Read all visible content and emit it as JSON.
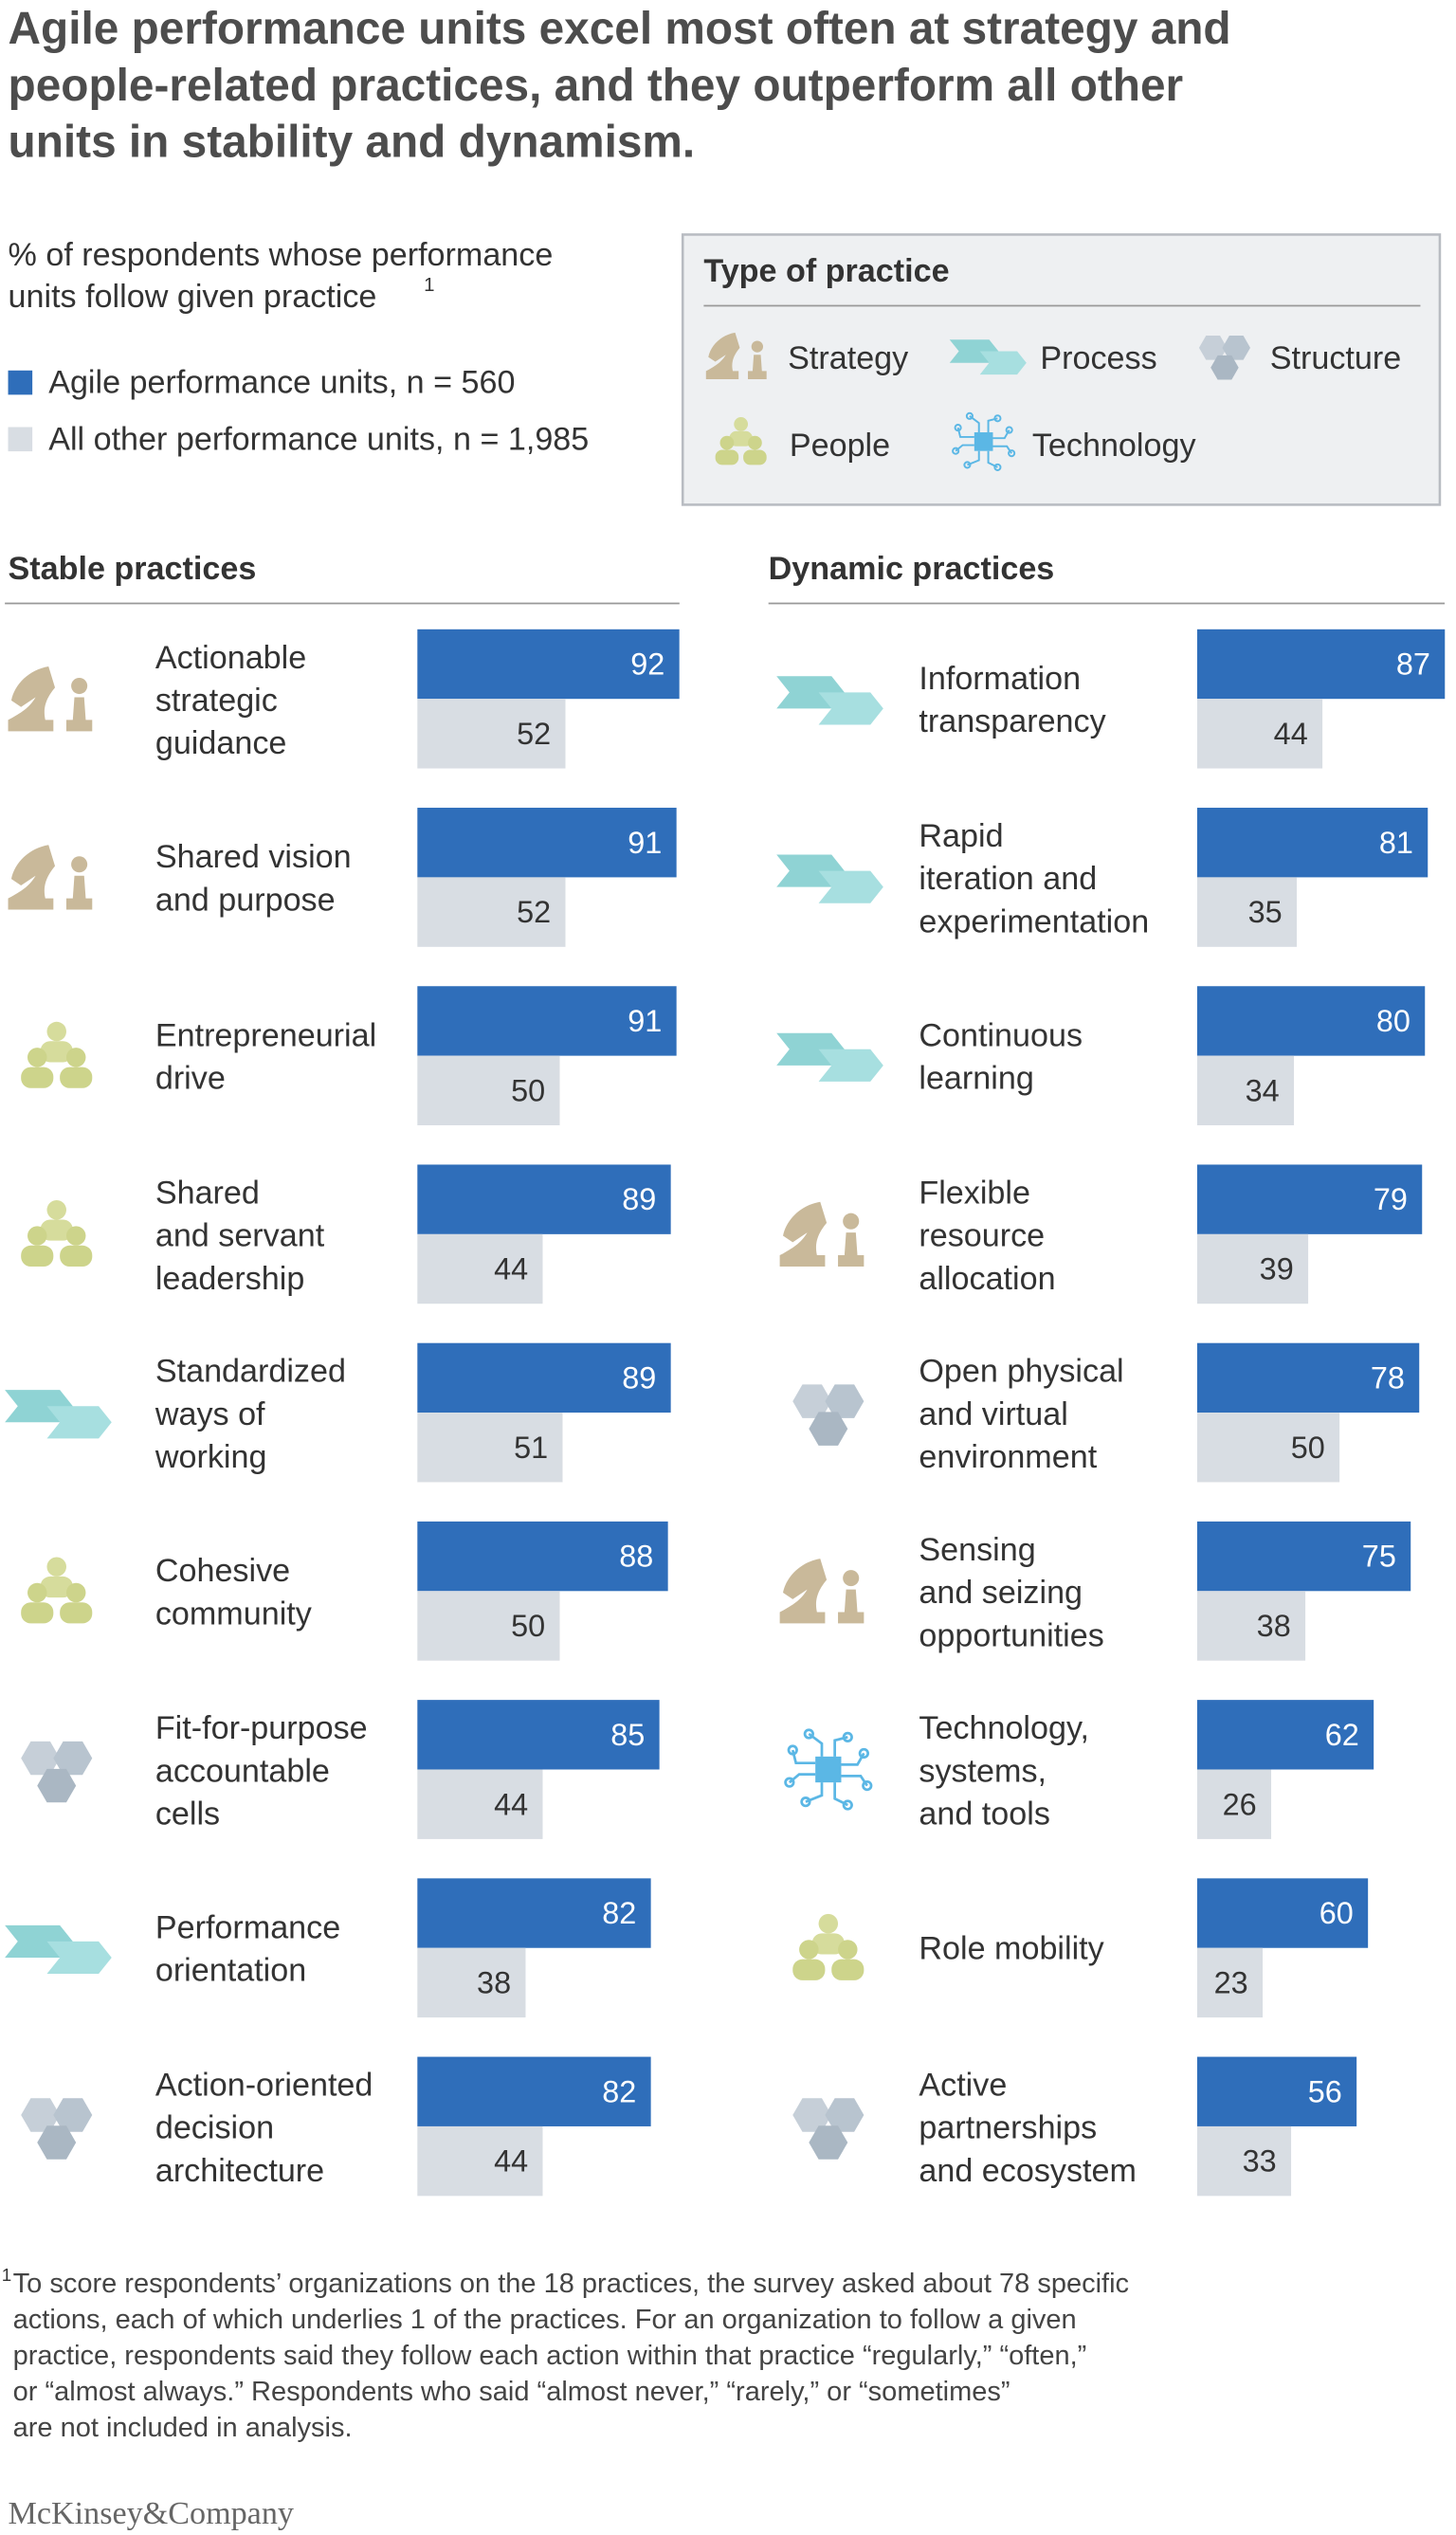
{
  "header": {
    "title": "Agile performance units excel most often at strategy and\npeople-related practices, and they outperform all other\nunits in stability and dynamism.",
    "subtitle": "% of respondents whose performance\nunits follow given practice",
    "subtitle_note": "1"
  },
  "legend": {
    "items": [
      {
        "name": "Agile performance units, n = 560",
        "color": "#2f6eba"
      },
      {
        "name": "All other performance units, n = 1,985",
        "color": "#d8dde3"
      }
    ]
  },
  "practice_types": {
    "title": "Type of practice",
    "items": [
      "Strategy",
      "Process",
      "Structure",
      "People",
      "Technology"
    ]
  },
  "chart_data": [
    {
      "type": "bar",
      "title": "Stable practices",
      "categories": [
        "Actionable\nstrategic\nguidance",
        "Shared vision\nand purpose",
        "Entrepreneurial\ndrive",
        "Shared\nand servant\nleadership",
        "Standardized\nways of\nworking",
        "Cohesive\ncommunity",
        "Fit-for-purpose\naccountable\ncells",
        "Performance\norientation",
        "Action-oriented\ndecision\narchitecture"
      ],
      "icons": [
        "Strategy",
        "Strategy",
        "People",
        "People",
        "Process",
        "People",
        "Structure",
        "Process",
        "Structure"
      ],
      "series": [
        {
          "color": "#2f6eba",
          "values": [
            92,
            91,
            91,
            89,
            89,
            88,
            85,
            82,
            82
          ]
        },
        {
          "color": "#d8dde3",
          "values": [
            52,
            52,
            50,
            44,
            51,
            50,
            44,
            38,
            44
          ]
        }
      ],
      "xlim": [
        0,
        100
      ]
    },
    {
      "type": "bar",
      "title": "Dynamic practices",
      "categories": [
        "Information\ntransparency",
        "Rapid\niteration and\nexperimentation",
        "Continuous\nlearning",
        "Flexible\nresource\nallocation",
        "Open physical\nand virtual\nenvironment",
        "Sensing\nand seizing\nopportunities",
        "Technology,\nsystems,\nand tools",
        "Role mobility",
        "Active\npartnerships\nand ecosystem"
      ],
      "icons": [
        "Process",
        "Process",
        "Process",
        "Strategy",
        "Structure",
        "Strategy",
        "Technology",
        "People",
        "Structure"
      ],
      "series": [
        {
          "color": "#2f6eba",
          "values": [
            87,
            81,
            80,
            79,
            78,
            75,
            62,
            60,
            56
          ]
        },
        {
          "color": "#d8dde3",
          "values": [
            44,
            35,
            34,
            39,
            50,
            38,
            26,
            23,
            33
          ]
        }
      ],
      "xlim": [
        0,
        100
      ]
    }
  ],
  "footnote": {
    "marker": "1",
    "text": "To score respondents’ organizations on the 18 practices, the survey asked about 78 specific\nactions, each of which underlies 1 of the practices. For an organization to follow a given\npractice, respondents said they follow each action within that practice “regularly,” “often,”\nor “almost always.” Respondents who said “almost never,” “rarely,” or “sometimes”\nare not included in analysis."
  },
  "logo": "McKinsey&Company"
}
